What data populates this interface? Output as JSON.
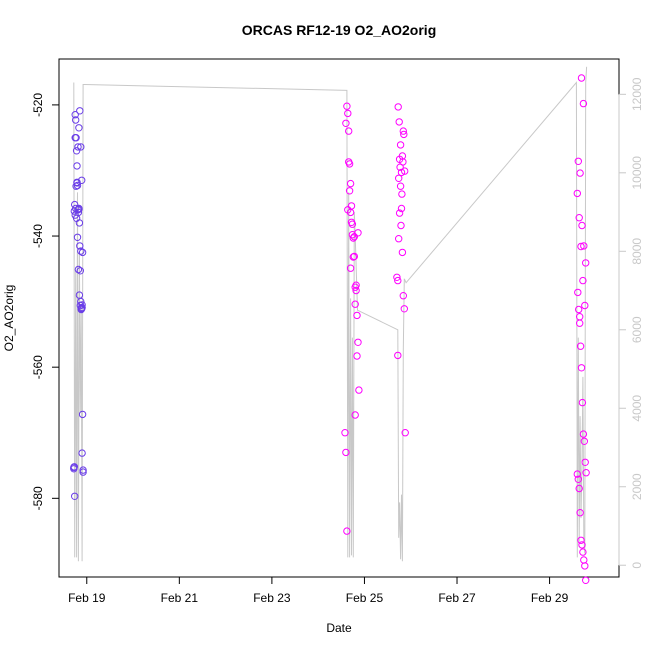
{
  "chart_data": {
    "type": "scatter",
    "title": "ORCAS RF12-19 O2_AO2orig",
    "xlabel": "Date",
    "ylabel": "O2_AO2orig",
    "x_unit": "days of February 2016",
    "xlim": [
      18.4,
      30.5
    ],
    "ylim": [
      -592,
      -513
    ],
    "y2lim": [
      -300,
      12900
    ],
    "x_ticks": [
      19,
      21,
      23,
      25,
      27,
      29
    ],
    "x_tick_labels": [
      "Feb 19",
      "Feb 21",
      "Feb 23",
      "Feb 25",
      "Feb 27",
      "Feb 29"
    ],
    "y_ticks": [
      -580,
      -560,
      -540,
      -520
    ],
    "y_tick_labels": [
      "-580",
      "-560",
      "-540",
      "-520"
    ],
    "y2_ticks": [
      0,
      2000,
      4000,
      6000,
      8000,
      10000,
      12000
    ],
    "y2_tick_labels": [
      "0",
      "2000",
      "4000",
      "6000",
      "8000",
      "10000",
      "12000"
    ],
    "colors": {
      "points_flight_early": "#6a3de8",
      "points_flight_late": "#ff00ff",
      "altitude_line": "#c8c8c8",
      "axes": "#000000"
    },
    "series": [
      {
        "kind": "points",
        "axis": "left",
        "x": [
          18.72,
          18.73,
          18.74,
          18.75,
          18.76,
          18.77,
          18.78,
          18.79,
          18.8,
          18.81,
          18.82,
          18.83,
          18.84,
          18.85,
          18.86,
          18.87,
          18.88,
          18.89,
          18.9,
          18.91,
          18.92,
          18.73,
          18.75,
          18.77,
          18.79,
          18.81,
          18.83,
          18.85,
          18.87,
          18.89,
          18.91,
          18.74,
          18.76,
          18.78,
          18.8,
          18.82,
          18.84,
          18.86,
          18.88,
          18.9,
          18.72,
          18.75,
          18.79,
          18.83,
          18.87,
          18.9,
          18.92
        ],
        "y": [
          -575.5,
          -575.2,
          -579.7,
          -521.5,
          -522.3,
          -525,
          -527,
          -531.8,
          -532.3,
          -536,
          -536.4,
          -535.8,
          -538,
          -541.5,
          -545.3,
          -550,
          -551,
          -551.1,
          -550.5,
          -567.2,
          -575.7,
          -536.2,
          -536.8,
          -532.4,
          -529.3,
          -526.4,
          -523.5,
          -520.9,
          -526.4,
          -531.5,
          -542.5,
          -535.2,
          -535.8,
          -537.3,
          -540.2,
          -545.1,
          -549,
          -550.6,
          -551.2,
          -573.1,
          -575.3,
          -525,
          -531.9,
          -535.9,
          -542.3,
          -550.9,
          -576
        ],
        "color": "#6a3de8"
      },
      {
        "kind": "points",
        "axis": "left",
        "x": [
          24.58,
          24.6,
          24.62,
          24.64,
          24.66,
          24.68,
          24.7,
          24.72,
          24.74,
          24.76,
          24.78,
          24.8,
          24.82,
          24.84,
          24.86,
          24.88,
          24.62,
          24.66,
          24.7,
          24.74,
          24.78,
          24.82,
          24.86,
          24.64,
          24.68,
          24.72,
          24.76,
          24.8,
          24.84,
          24.6,
          24.7,
          24.8
        ],
        "y": [
          -570,
          -573,
          -585,
          -536,
          -524,
          -529,
          -532,
          -535.4,
          -538.2,
          -540.3,
          -543.1,
          -547.8,
          -548.3,
          -552.1,
          -556.2,
          -563.5,
          -520.2,
          -528.7,
          -536.4,
          -539.8,
          -540.1,
          -547.5,
          -539.5,
          -521.3,
          -533.1,
          -537.9,
          -543.2,
          -550.4,
          -558.3,
          -522.8,
          -544.9,
          -567.3
        ],
        "color": "#ff00ff"
      },
      {
        "kind": "points",
        "axis": "left",
        "x": [
          25.7,
          25.72,
          25.74,
          25.76,
          25.78,
          25.8,
          25.82,
          25.84,
          25.86,
          25.88,
          25.72,
          25.74,
          25.76,
          25.78,
          25.8,
          25.82,
          25.84,
          25.73,
          25.75,
          25.77,
          25.79,
          25.81,
          25.83,
          25.85,
          25.87
        ],
        "y": [
          -546.3,
          -546.8,
          -540.4,
          -536.5,
          -532.4,
          -530.3,
          -527.8,
          -524,
          -551.1,
          -570,
          -558.2,
          -531.2,
          -528.3,
          -526.1,
          -535.8,
          -542.5,
          -549.1,
          -520.3,
          -522.6,
          -529.5,
          -538.4,
          -533.6,
          -528.7,
          -524.5,
          -530.1
        ],
        "color": "#ff00ff"
      },
      {
        "kind": "points",
        "axis": "left",
        "x": [
          29.6,
          29.62,
          29.64,
          29.66,
          29.68,
          29.7,
          29.72,
          29.74,
          29.76,
          29.78,
          29.61,
          29.63,
          29.65,
          29.67,
          29.69,
          29.71,
          29.73,
          29.75,
          29.77,
          29.79,
          29.6,
          29.64,
          29.68,
          29.72,
          29.76,
          29.62,
          29.66,
          29.7,
          29.74,
          29.78,
          29.65,
          29.69,
          29.73
        ],
        "y": [
          -576.3,
          -577.1,
          -578.5,
          -582.2,
          -586.4,
          -587.1,
          -588.2,
          -589.4,
          -590.3,
          -592.5,
          -548.6,
          -551.2,
          -553.3,
          -556.8,
          -560.1,
          -565.4,
          -570.2,
          -571.3,
          -574.5,
          -576.1,
          -533.5,
          -537.2,
          -541.6,
          -546.8,
          -550.6,
          -528.6,
          -530.4,
          -538.4,
          -541.5,
          -544.1,
          -552.3,
          -515.9,
          -519.8
        ],
        "color": "#ff00ff"
      },
      {
        "kind": "line",
        "axis": "right",
        "x": [
          18.72,
          18.74,
          18.76,
          18.78,
          18.8,
          18.82,
          18.84,
          18.86,
          18.88,
          18.9,
          18.92,
          18.95,
          24.62,
          24.64,
          24.66,
          24.68,
          24.7,
          24.72,
          24.74,
          24.76,
          24.78,
          24.8,
          24.85,
          25.72,
          25.74,
          25.76,
          25.78,
          25.8,
          25.82,
          25.84,
          25.86,
          25.9,
          29.58,
          29.6,
          29.62,
          29.64,
          29.66,
          29.68,
          29.7,
          29.72,
          29.74,
          29.76,
          29.78,
          29.8
        ],
        "y": [
          12300,
          200,
          7500,
          200,
          9500,
          100,
          8000,
          3900,
          6600,
          100,
          12250,
          12250,
          12100,
          200,
          9500,
          200,
          6800,
          250,
          5800,
          200,
          9000,
          8400,
          6500,
          6000,
          700,
          1600,
          150,
          1800,
          100,
          5500,
          7300,
          7200,
          12300,
          200,
          5800,
          600,
          3800,
          1200,
          2600,
          4800,
          700,
          300,
          12300,
          12700
        ],
        "color": "#c8c8c8"
      }
    ]
  }
}
